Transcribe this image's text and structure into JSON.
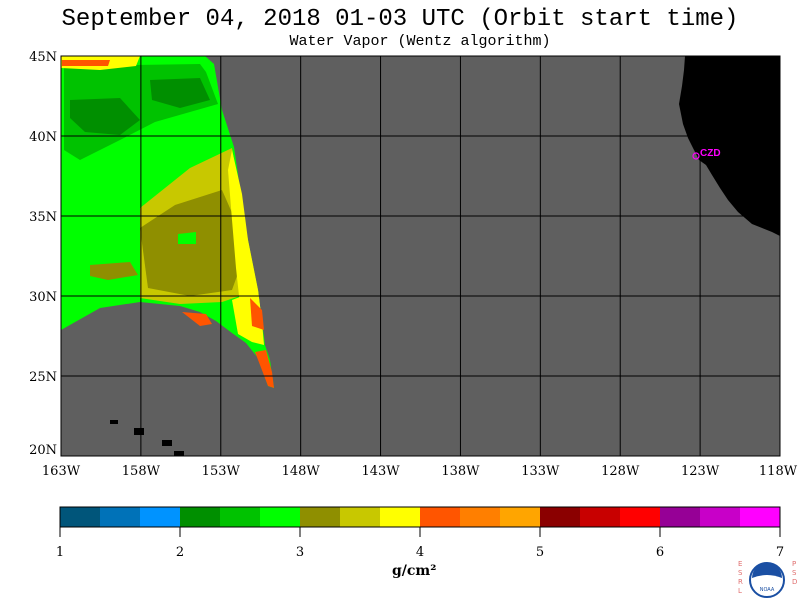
{
  "title": "September 04, 2018  01-03 UTC  (Orbit start time)",
  "subtitle": "Water Vapor (Wentz algorithm)",
  "map": {
    "lat_labels": [
      "45N",
      "40N",
      "35N",
      "30N",
      "25N",
      "20N"
    ],
    "lon_labels": [
      "163W",
      "158W",
      "153W",
      "148W",
      "143W",
      "138W",
      "133W",
      "128W",
      "123W",
      "118W"
    ],
    "station_label": "CZD",
    "colors": {
      "ocean_no_data": "#5f5f5f",
      "land": "#000000",
      "grid": "#000000",
      "station": "#ff00ff"
    }
  },
  "colorbar": {
    "tick_labels": [
      "1",
      "2",
      "3",
      "4",
      "5",
      "6",
      "7"
    ],
    "units_label": "g/cm²",
    "colors": [
      "#00557a",
      "#0072b8",
      "#0093ff",
      "#008f00",
      "#00c200",
      "#00ff00",
      "#8f8f00",
      "#c8c800",
      "#ffff00",
      "#ff5500",
      "#ff7f00",
      "#ffa500",
      "#8b0000",
      "#c80000",
      "#ff0000",
      "#960096",
      "#c800c8",
      "#ff00ff"
    ]
  },
  "logo": {
    "left_letters": "ESRL",
    "right_letters": "PSD",
    "center_text": "NOAA"
  }
}
